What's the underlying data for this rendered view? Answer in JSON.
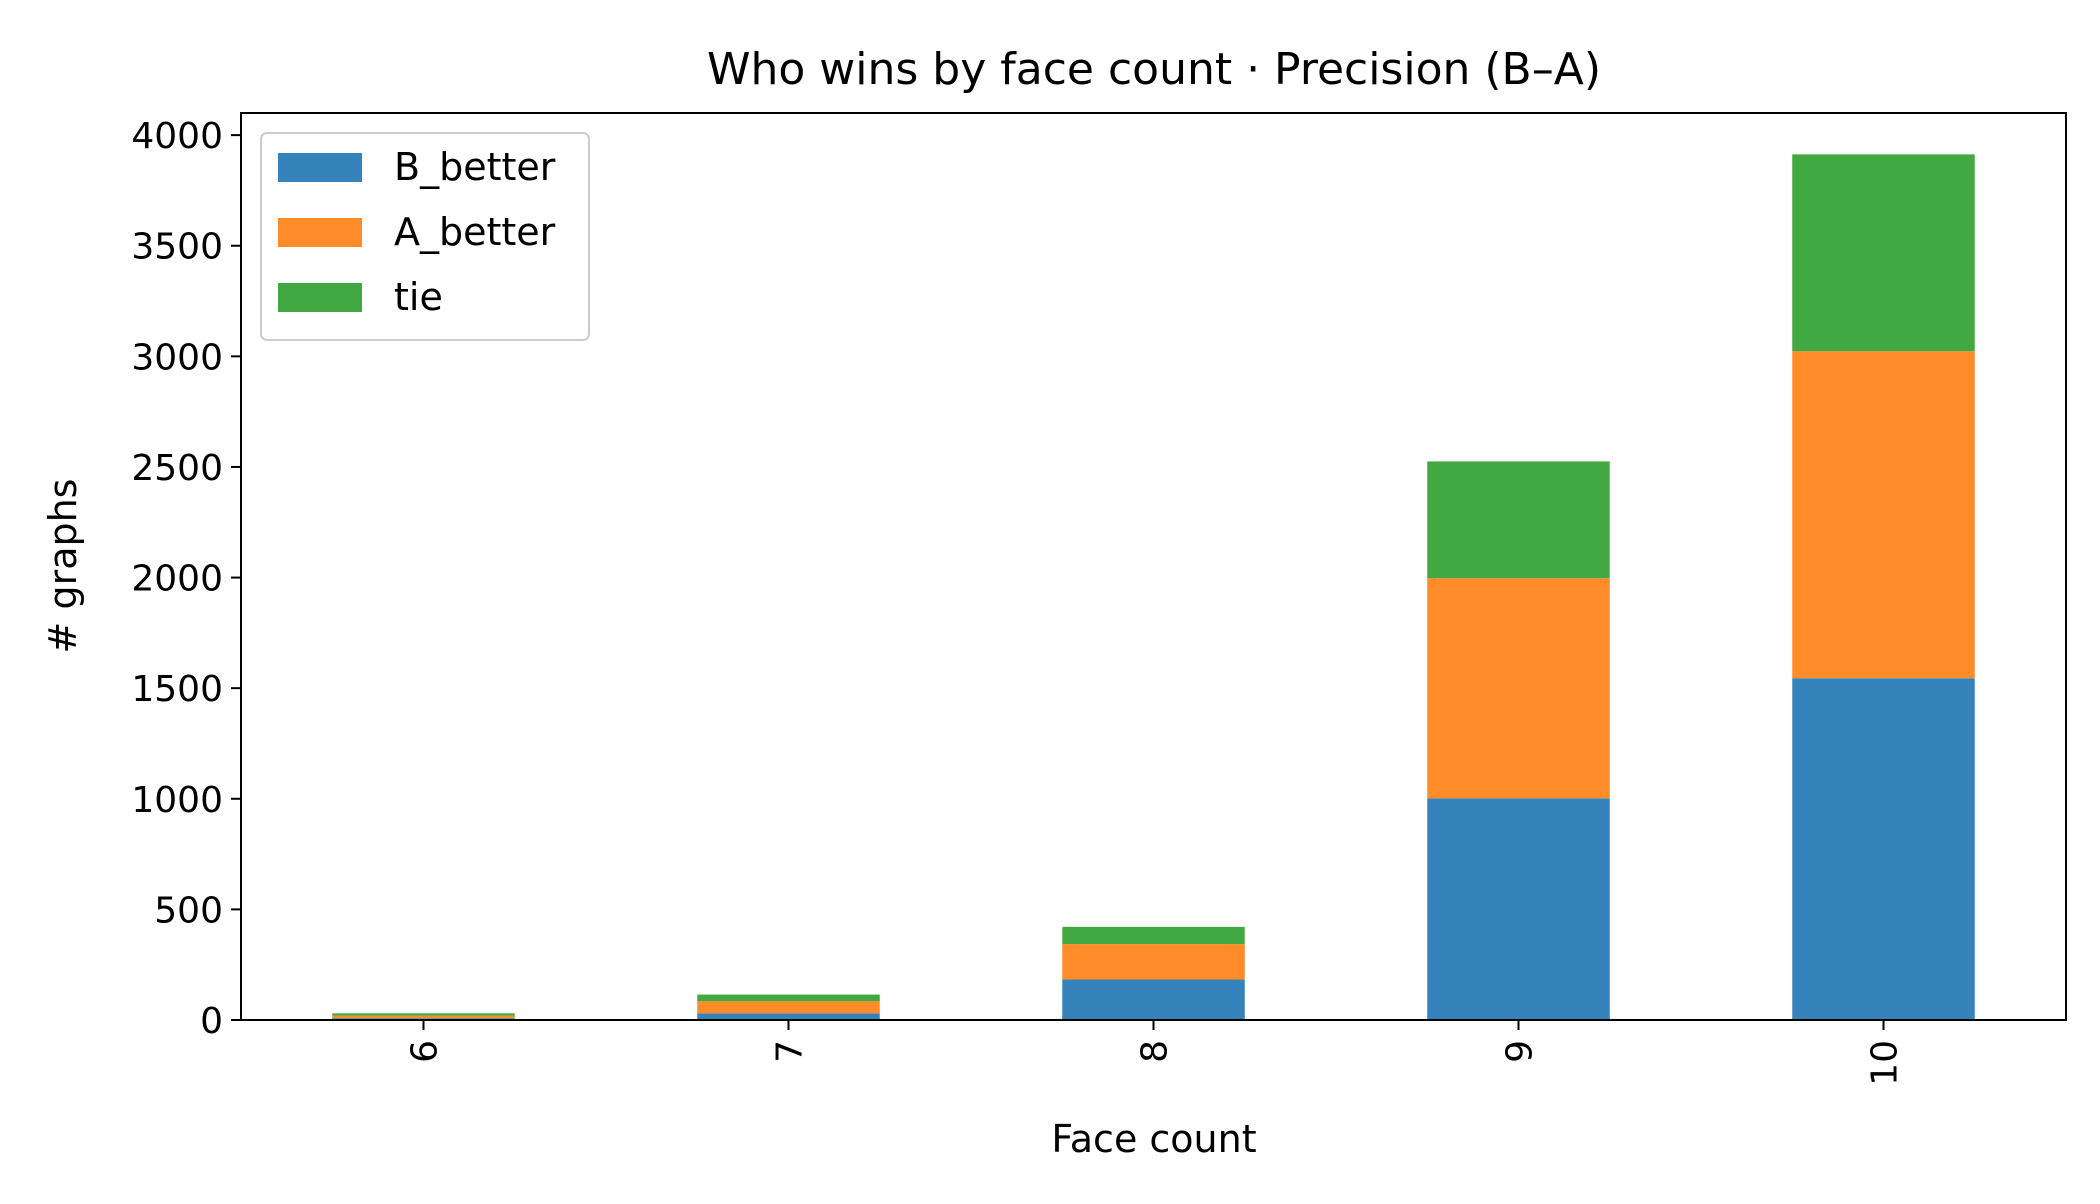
{
  "chart_data": {
    "type": "bar",
    "stacked": true,
    "title": "Who wins by face count · Precision  (B–A)",
    "xlabel": "Face count",
    "ylabel": "# graphs",
    "categories": [
      "6",
      "7",
      "8",
      "9",
      "10"
    ],
    "series": [
      {
        "name": "B_better",
        "color": "#3683bb",
        "values": [
          8,
          30,
          183,
          1002,
          1545
        ]
      },
      {
        "name": "A_better",
        "color": "#ff8c29",
        "values": [
          12,
          55,
          160,
          995,
          1478
        ]
      },
      {
        "name": "tie",
        "color": "#42a942",
        "values": [
          10,
          30,
          78,
          528,
          890
        ]
      }
    ],
    "ylim": [
      0,
      4100
    ],
    "yticks": [
      0,
      500,
      1000,
      1500,
      2000,
      2500,
      3000,
      3500,
      4000
    ],
    "grid": false,
    "legend": "top-left"
  }
}
